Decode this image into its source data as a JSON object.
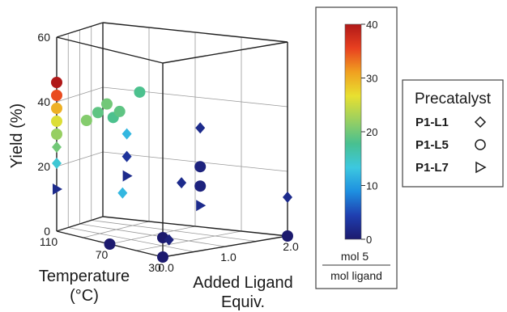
{
  "chart_data": {
    "type": "scatter3d",
    "axes": {
      "z": {
        "label": "Yield (%)",
        "range": [
          0,
          60
        ],
        "ticks": [
          "0",
          "20",
          "40",
          "60"
        ]
      },
      "x": {
        "label_lines": [
          "Temperature",
          "(°C)"
        ],
        "range": [
          30,
          110
        ],
        "ticks": [
          "110",
          "70",
          "30"
        ]
      },
      "y": {
        "label_lines": [
          "Added Ligand",
          "Equiv."
        ],
        "range": [
          0,
          2
        ],
        "ticks": [
          "0.0",
          "1.0",
          "2.0"
        ]
      }
    },
    "colorbar": {
      "range": [
        0,
        40
      ],
      "ticks": [
        "0",
        "10",
        "20",
        "30",
        "40"
      ],
      "numerator": "mol 5",
      "denominator": "mol ligand",
      "colors": [
        "#1c1a6e",
        "#1f3fb0",
        "#1e8fe0",
        "#3cc8e0",
        "#48c090",
        "#9bd060",
        "#e8e030",
        "#f0a020",
        "#e84020",
        "#b01818"
      ]
    },
    "legend": {
      "title": "Precatalyst",
      "items": [
        {
          "label": "P1-L1",
          "marker": "diamond"
        },
        {
          "label": "P1-L5",
          "marker": "circle"
        },
        {
          "label": "P1-L7",
          "marker": "triangle"
        }
      ]
    },
    "points": [
      {
        "temp": 110,
        "lig": 0.0,
        "yield": 46,
        "color": 40,
        "marker": "circle"
      },
      {
        "temp": 110,
        "lig": 0.0,
        "yield": 42,
        "color": 35,
        "marker": "circle"
      },
      {
        "temp": 110,
        "lig": 0.0,
        "yield": 38,
        "color": 30,
        "marker": "circle"
      },
      {
        "temp": 110,
        "lig": 0.0,
        "yield": 34,
        "color": 26,
        "marker": "circle"
      },
      {
        "temp": 110,
        "lig": 0.0,
        "yield": 30,
        "color": 22,
        "marker": "circle"
      },
      {
        "temp": 110,
        "lig": 0.0,
        "yield": 26,
        "color": 20,
        "marker": "diamond"
      },
      {
        "temp": 110,
        "lig": 0.0,
        "yield": 21,
        "color": 14,
        "marker": "diamond"
      },
      {
        "temp": 110,
        "lig": 0.0,
        "yield": 13,
        "color": 2,
        "marker": "triangle"
      },
      {
        "temp": 90,
        "lig": 0.1,
        "yield": 36,
        "color": 21,
        "marker": "circle"
      },
      {
        "temp": 83,
        "lig": 0.15,
        "yield": 39,
        "color": 19,
        "marker": "circle"
      },
      {
        "temp": 78,
        "lig": 0.2,
        "yield": 42,
        "color": 20,
        "marker": "circle"
      },
      {
        "temp": 75,
        "lig": 0.25,
        "yield": 38,
        "color": 18,
        "marker": "circle"
      },
      {
        "temp": 72,
        "lig": 0.3,
        "yield": 40,
        "color": 19,
        "marker": "circle"
      },
      {
        "temp": 60,
        "lig": 0.35,
        "yield": 47,
        "color": 18,
        "marker": "circle"
      },
      {
        "temp": 70,
        "lig": 0.4,
        "yield": 33,
        "color": 12,
        "marker": "diamond"
      },
      {
        "temp": 70,
        "lig": 0.4,
        "yield": 26,
        "color": 3,
        "marker": "diamond"
      },
      {
        "temp": 70,
        "lig": 0.4,
        "yield": 20,
        "color": 2,
        "marker": "triangle"
      },
      {
        "temp": 70,
        "lig": 0.3,
        "yield": 15,
        "color": 12,
        "marker": "diamond"
      },
      {
        "temp": 30,
        "lig": 0.0,
        "yield": 6,
        "color": 0,
        "marker": "circle"
      },
      {
        "temp": 30,
        "lig": 0.0,
        "yield": 0,
        "color": 0,
        "marker": "circle"
      },
      {
        "temp": 30,
        "lig": 0.1,
        "yield": 5,
        "color": 1,
        "marker": "diamond"
      },
      {
        "temp": 30,
        "lig": 0.3,
        "yield": 22,
        "color": 2,
        "marker": "diamond"
      },
      {
        "temp": 30,
        "lig": 0.6,
        "yield": 26,
        "color": 1,
        "marker": "circle"
      },
      {
        "temp": 30,
        "lig": 0.6,
        "yield": 20,
        "color": 1,
        "marker": "circle"
      },
      {
        "temp": 30,
        "lig": 0.6,
        "yield": 14,
        "color": 2,
        "marker": "triangle"
      },
      {
        "temp": 30,
        "lig": 0.6,
        "yield": 38,
        "color": 2,
        "marker": "diamond"
      },
      {
        "temp": 30,
        "lig": 2.0,
        "yield": 12,
        "color": 2,
        "marker": "diamond"
      },
      {
        "temp": 30,
        "lig": 2.0,
        "yield": 0,
        "color": 0,
        "marker": "circle"
      },
      {
        "temp": 70,
        "lig": 0.0,
        "yield": 0,
        "color": 0,
        "marker": "circle"
      }
    ]
  }
}
